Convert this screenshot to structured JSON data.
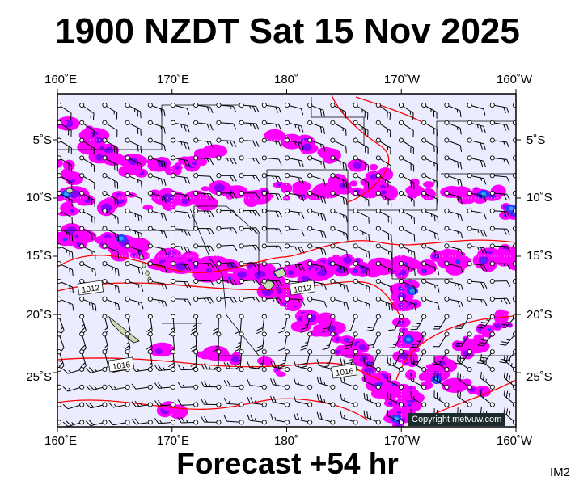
{
  "title": "1900 NZDT Sat 15 Nov 2025",
  "footer": "Forecast +54 hr",
  "image_code": "IM2",
  "copyright": "Copyright metvuw.com",
  "lon_labels": [
    "160˚E",
    "170˚E",
    "180˚",
    "170˚W",
    "160˚W"
  ],
  "lat_labels": [
    "5˚S",
    "10˚S",
    "15˚S",
    "20˚S",
    "25˚S"
  ],
  "isobar_labels": [
    "1012",
    "1012",
    "1016",
    "1016"
  ],
  "colors": {
    "ocean": "#ececff",
    "rain_light": "#ff00ff",
    "rain_mid": "#8a00ff",
    "rain_heavy": "#2a3cff",
    "rain_extreme": "#30a0ff",
    "isobar": "#ff0000",
    "coast": "#000000"
  },
  "icons": {
    "station": "wind-barb-station-icon"
  }
}
